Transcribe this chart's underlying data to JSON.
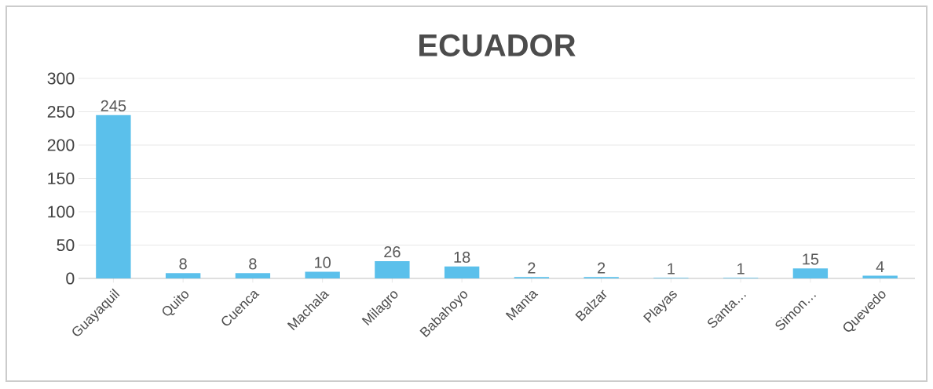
{
  "chart_data": {
    "type": "bar",
    "title": "ECUADOR",
    "categories": [
      "Guayaquil",
      "Quito",
      "Cuenca",
      "Machala",
      "Milagro",
      "Babahoyo",
      "Manta",
      "Balzar",
      "Playas",
      "Santa…",
      "Simon…",
      "Quevedo"
    ],
    "values": [
      245,
      8,
      8,
      10,
      26,
      18,
      2,
      2,
      1,
      1,
      15,
      4
    ],
    "color": "#5bc0eb",
    "ylim": [
      0,
      300
    ],
    "yticks": [
      0,
      50,
      100,
      150,
      200,
      250,
      300
    ],
    "grid": "y",
    "data_labels": true
  }
}
